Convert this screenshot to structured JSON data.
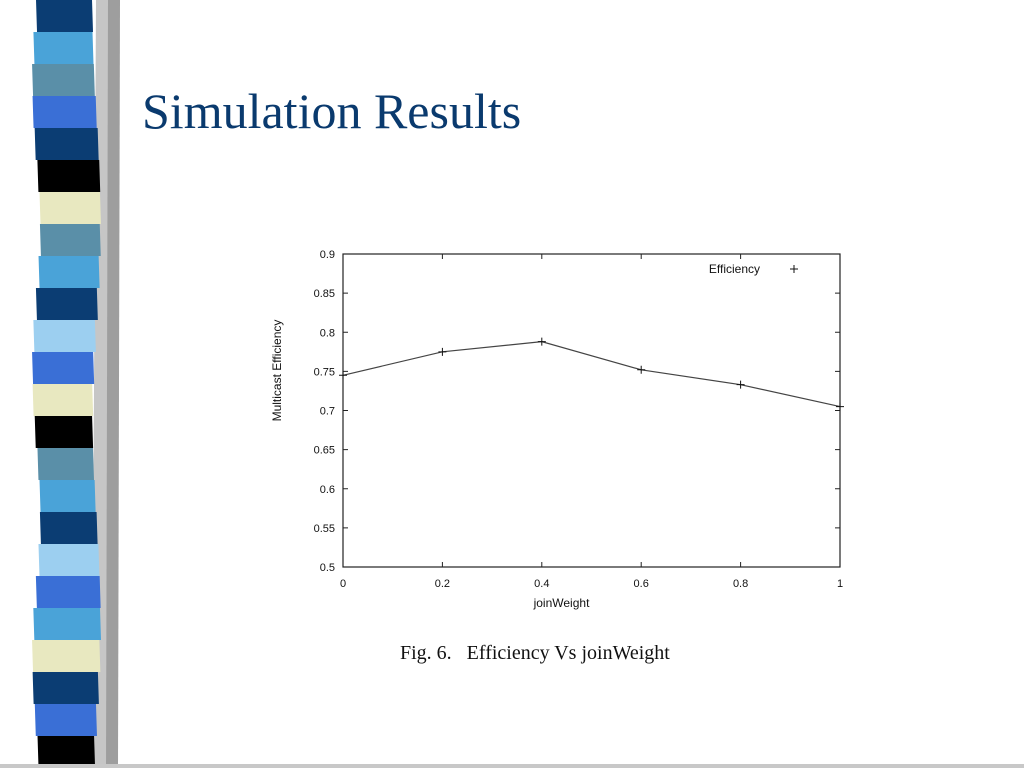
{
  "slide": {
    "title": "Simulation Results",
    "caption": "Fig. 6.   Efficiency Vs joinWeight"
  },
  "theme": {
    "title_color": "#0a3a6e",
    "stripe_colors": [
      "#0b3d73",
      "#4aa3d8",
      "#5a8fa8",
      "#3a6fd6",
      "#e8e8c0",
      "#000000",
      "#9ccff0"
    ]
  },
  "chart_data": {
    "type": "line",
    "xlabel": "joinWeight",
    "ylabel": "Multicast Efficiency",
    "xlim": [
      0,
      1
    ],
    "ylim": [
      0.5,
      0.9
    ],
    "xticks": [
      "0",
      "0.2",
      "0.4",
      "0.6",
      "0.8",
      "1"
    ],
    "yticks": [
      "0.5",
      "0.55",
      "0.6",
      "0.65",
      "0.7",
      "0.75",
      "0.8",
      "0.85",
      "0.9"
    ],
    "legend": "top-right",
    "grid": false,
    "series": [
      {
        "name": "Efficiency",
        "marker": "+",
        "x": [
          0.0,
          0.2,
          0.4,
          0.6,
          0.8,
          1.0
        ],
        "y": [
          0.745,
          0.775,
          0.788,
          0.752,
          0.733,
          0.705
        ]
      }
    ]
  }
}
